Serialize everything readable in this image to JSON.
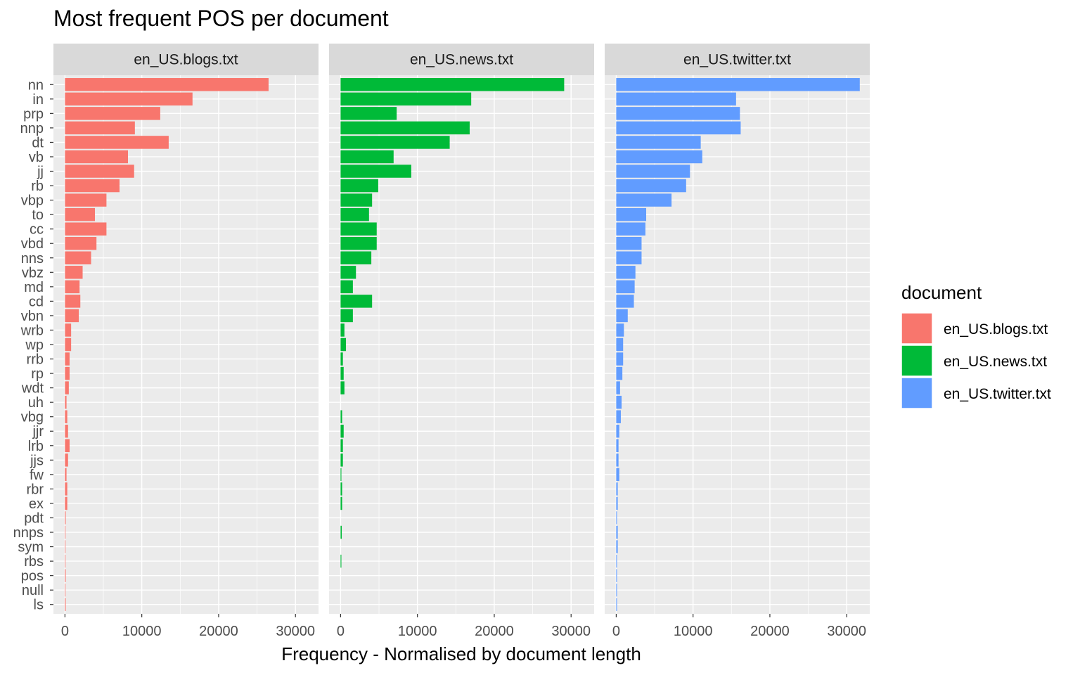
{
  "chart_data": {
    "type": "bar",
    "orientation": "horizontal",
    "title": "Most frequent POS per document",
    "xlabel": "Frequency - Normalised by document length",
    "ylabel": "",
    "xlim": [
      -1500,
      33000
    ],
    "xticks": [
      0,
      10000,
      20000,
      30000
    ],
    "xtick_labels": [
      "0",
      "10000",
      "20000",
      "30000"
    ],
    "grid": true,
    "legend": {
      "title": "document",
      "position": "right"
    },
    "categories": [
      "nn",
      "in",
      "prp",
      "nnp",
      "dt",
      "vb",
      "jj",
      "rb",
      "vbp",
      "to",
      "cc",
      "vbd",
      "nns",
      "vbz",
      "md",
      "cd",
      "vbn",
      "wrb",
      "wp",
      "rrb",
      "rp",
      "wdt",
      "uh",
      "vbg",
      "jjr",
      "lrb",
      "jjs",
      "fw",
      "rbr",
      "ex",
      "pdt",
      "nnps",
      "sym",
      "rbs",
      "pos",
      "null",
      "ls"
    ],
    "series": [
      {
        "name": "en_US.blogs.txt",
        "color": "#F8766D",
        "values": [
          26500,
          16600,
          12400,
          9100,
          13500,
          8200,
          9000,
          7100,
          5400,
          3900,
          5400,
          4100,
          3400,
          2300,
          1900,
          2000,
          1800,
          800,
          800,
          600,
          600,
          500,
          200,
          300,
          400,
          600,
          400,
          200,
          300,
          300,
          100,
          50,
          50,
          50,
          100,
          20,
          100
        ]
      },
      {
        "name": "en_US.news.txt",
        "color": "#00BA38",
        "values": [
          29100,
          17000,
          7300,
          16800,
          14200,
          6900,
          9200,
          4900,
          4100,
          3700,
          4700,
          4700,
          4000,
          2000,
          1600,
          4100,
          1600,
          500,
          700,
          300,
          400,
          500,
          0,
          200,
          400,
          300,
          300,
          100,
          200,
          200,
          0,
          150,
          0,
          100,
          0,
          0,
          0
        ]
      },
      {
        "name": "en_US.twitter.txt",
        "color": "#619CFF",
        "values": [
          31700,
          15600,
          16100,
          16200,
          11000,
          11200,
          9600,
          9100,
          7200,
          3900,
          3800,
          3300,
          3300,
          2500,
          2400,
          2300,
          1500,
          1000,
          900,
          900,
          800,
          500,
          700,
          600,
          400,
          300,
          300,
          400,
          200,
          200,
          100,
          200,
          200,
          100,
          100,
          100,
          100
        ]
      }
    ]
  }
}
